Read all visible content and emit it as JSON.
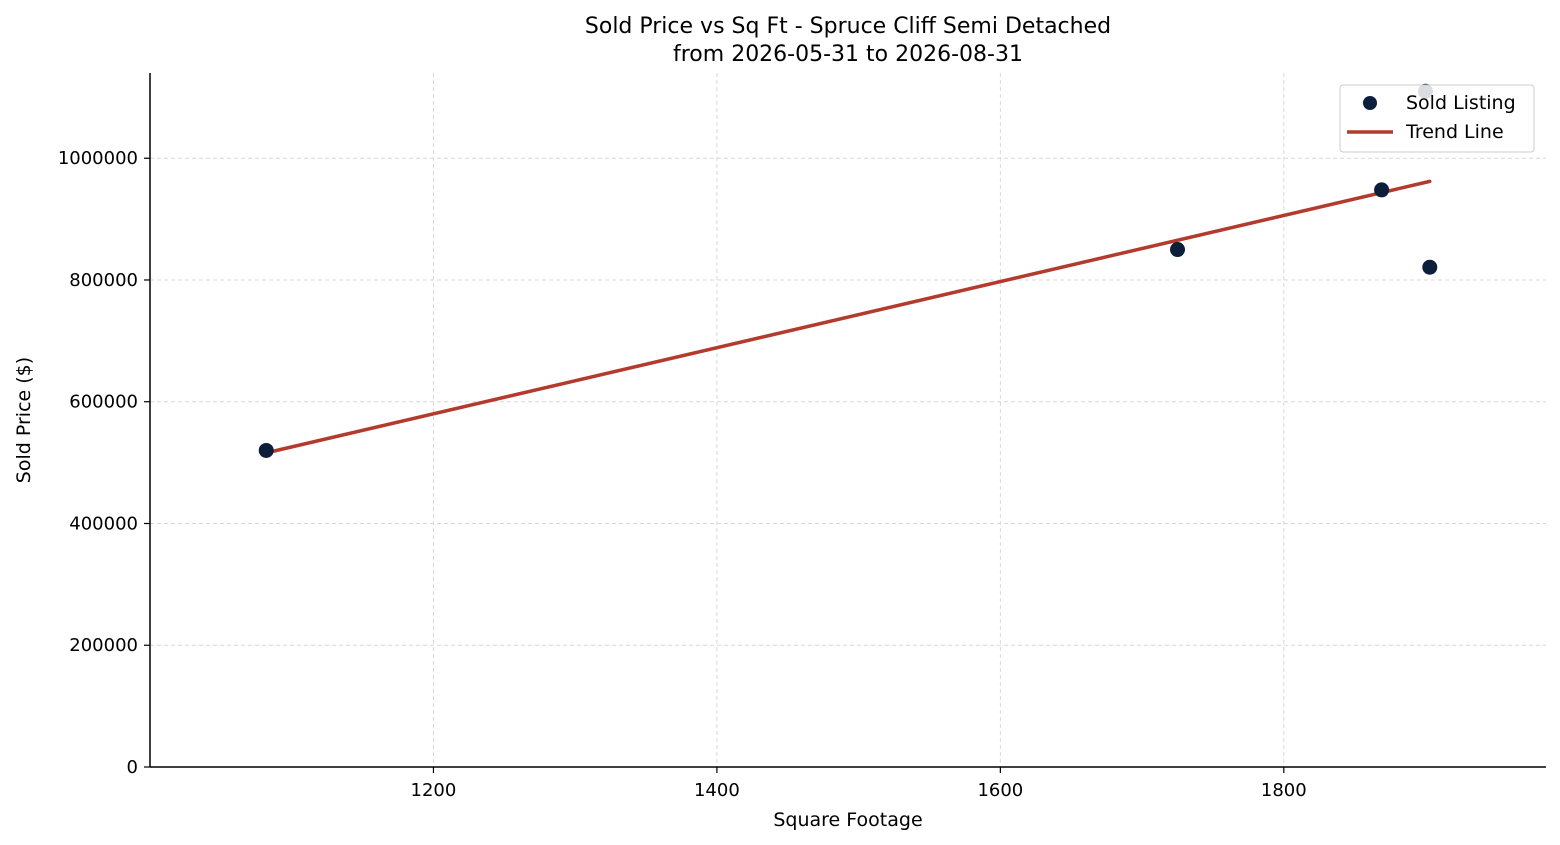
{
  "chart_data": {
    "type": "scatter",
    "title": "Sold Price vs Sq Ft - Spruce Cliff Semi Detached",
    "subtitle": "from 2026-05-31 to 2026-08-31",
    "xlabel": "Square Footage",
    "ylabel": "Sold Price ($)",
    "xlim": [
      1000,
      1985
    ],
    "ylim": [
      0,
      1140000
    ],
    "xticks": [
      1200,
      1400,
      1600,
      1800
    ],
    "yticks": [
      0,
      200000,
      400000,
      600000,
      800000,
      1000000
    ],
    "grid": true,
    "legend_position": "top-right",
    "series": [
      {
        "name": "Sold Listing",
        "kind": "scatter",
        "color": "#0b1f3a",
        "points": [
          {
            "x": 1082,
            "y": 520000
          },
          {
            "x": 1725,
            "y": 850000
          },
          {
            "x": 1869,
            "y": 948000
          },
          {
            "x": 1903,
            "y": 821000
          },
          {
            "x": 1900,
            "y": 1110000
          }
        ]
      },
      {
        "name": "Trend Line",
        "kind": "line",
        "color": "#b33a2c",
        "points": [
          {
            "x": 1082,
            "y": 516000
          },
          {
            "x": 1903,
            "y": 962000
          }
        ]
      }
    ]
  }
}
